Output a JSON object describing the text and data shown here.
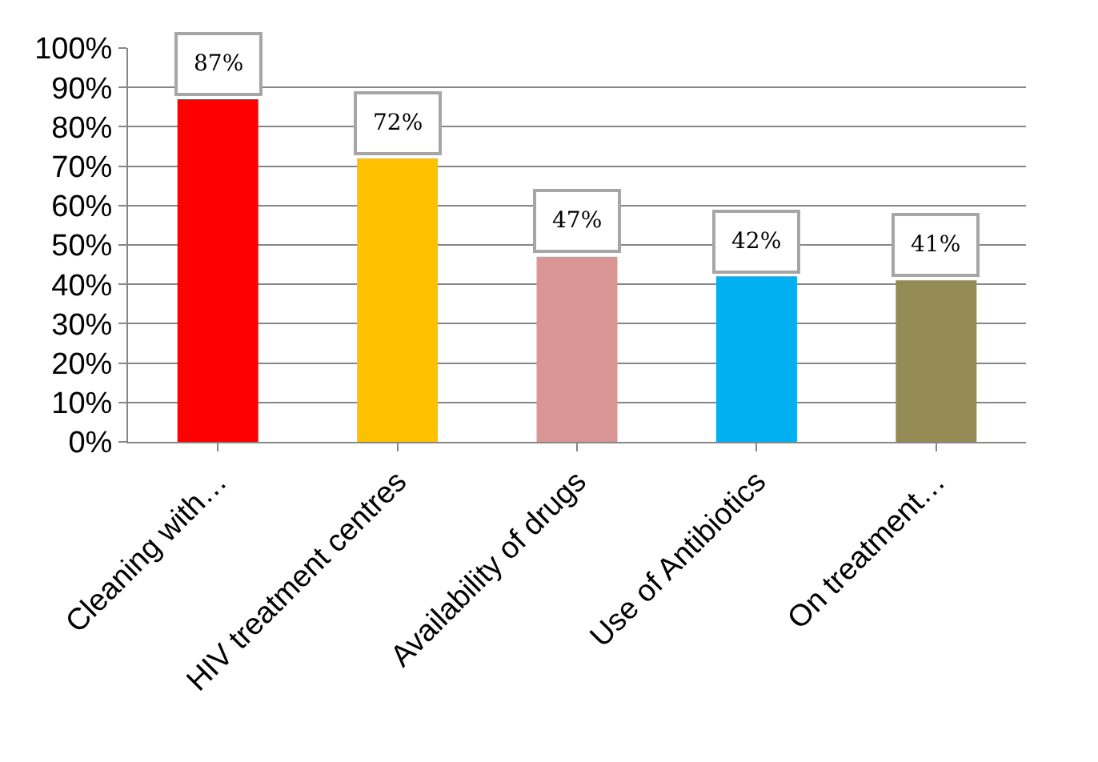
{
  "chart_data": {
    "type": "bar",
    "categories": [
      "Cleaning with…",
      "HIV treatment centres",
      "Availability of drugs",
      "Use of Antibiotics",
      "On treatment…"
    ],
    "values": [
      87,
      72,
      47,
      42,
      41
    ],
    "value_labels": [
      "87%",
      "72%",
      "47%",
      "42%",
      "41%"
    ],
    "colors": [
      "#ff0000",
      "#ffc000",
      "#d99694",
      "#00b0f0",
      "#948a54"
    ],
    "ylim": [
      0,
      100
    ],
    "yticks": [
      {
        "value": 0,
        "label": "0%"
      },
      {
        "value": 10,
        "label": "10%"
      },
      {
        "value": 20,
        "label": "20%"
      },
      {
        "value": 30,
        "label": "30%"
      },
      {
        "value": 40,
        "label": "40%"
      },
      {
        "value": 50,
        "label": "50%"
      },
      {
        "value": 60,
        "label": "60%"
      },
      {
        "value": 70,
        "label": "70%"
      },
      {
        "value": 80,
        "label": "80%"
      },
      {
        "value": 90,
        "label": "90%"
      },
      {
        "value": 100,
        "label": "100%"
      }
    ],
    "grid": "y"
  }
}
